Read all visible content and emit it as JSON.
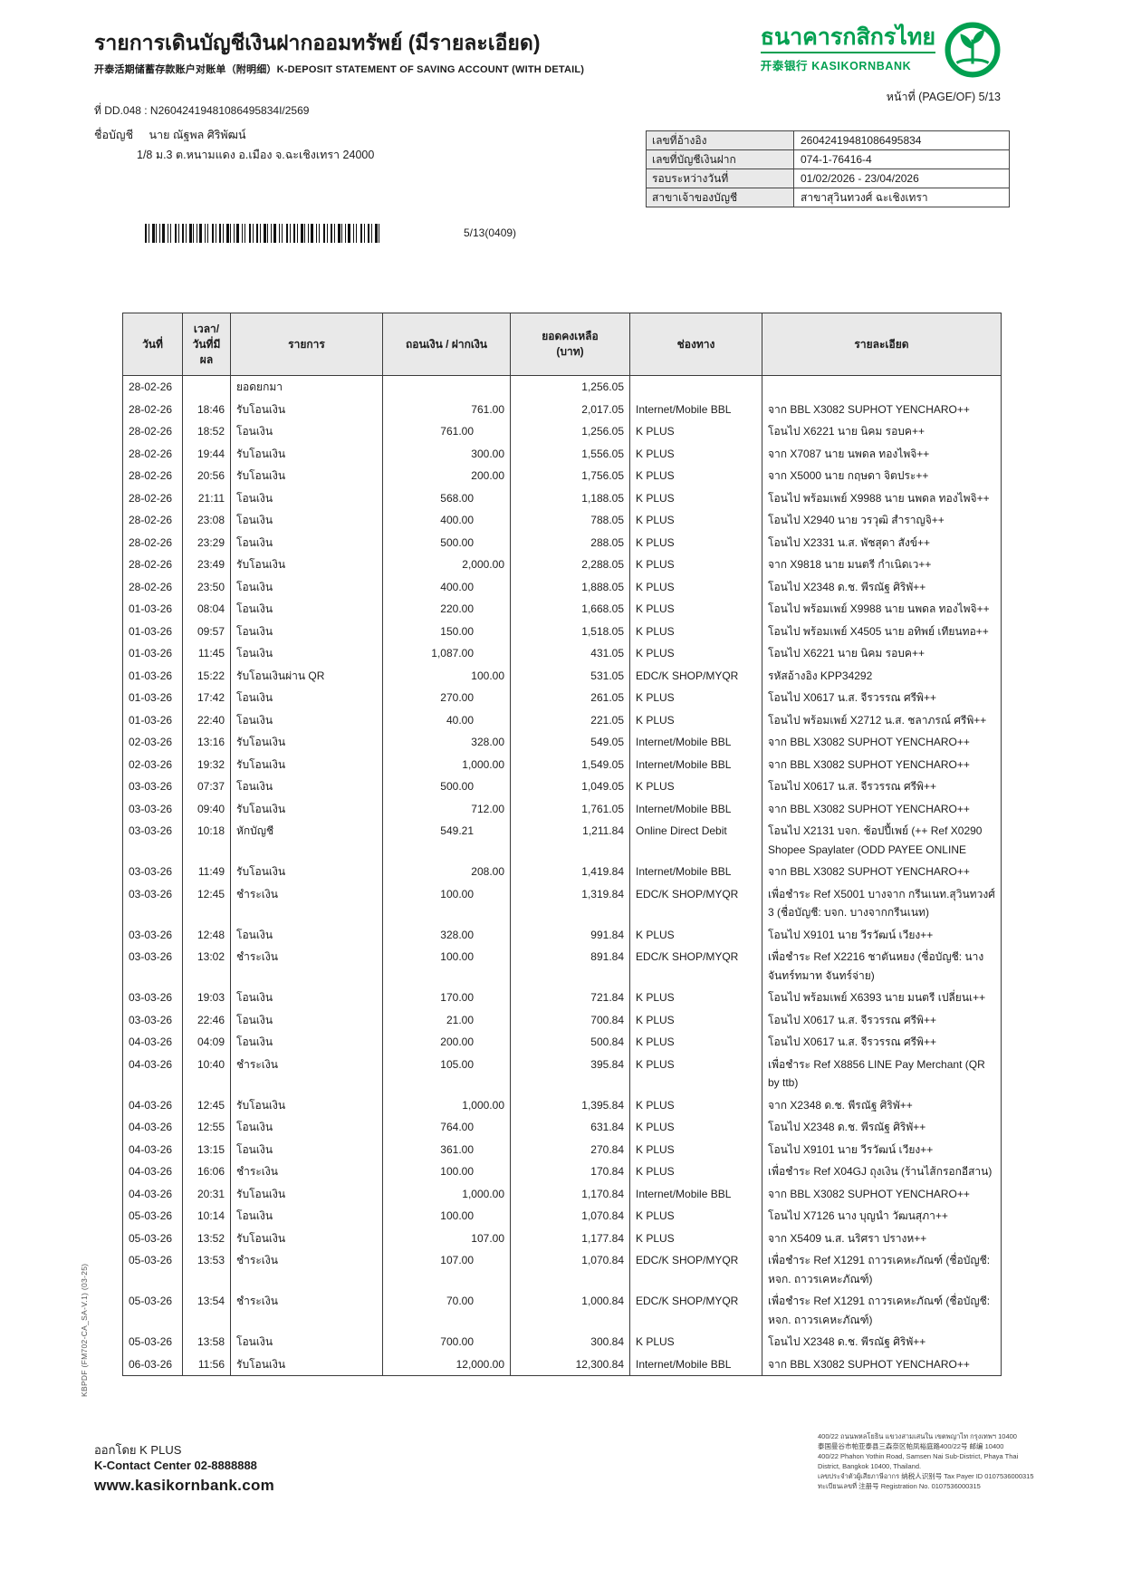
{
  "colors": {
    "brand_green": "#01a050",
    "table_header_bg": "#e9e9e9"
  },
  "header": {
    "title_th": "รายการเดินบัญชีเงินฝากออมทรัพย์ (มีรายละเอียด)",
    "title_cn_en": "开泰活期储蓄存款账户对账单（附明细）K-DEPOSIT STATEMENT OF SAVING ACCOUNT (WITH DETAIL)",
    "bank_name_th": "ธนาคารกสิกรไทย",
    "bank_name_sub": "开泰银行 KASIKORNBANK",
    "page_label": "หน้าที่ (PAGE/OF) 5/13",
    "doc_no": "ที่ DD.048 : N26042419481086495834I/2569",
    "account_name_label": "ชื่อบัญชี",
    "account_name": "นาย ณัฐพล ศิริพัฒน์",
    "account_address": "1/8 ม.3 ต.หนามแดง อ.เมือง จ.ฉะเชิงเทรา 24000"
  },
  "info_box": {
    "rows": [
      {
        "label": "เลขที่อ้างอิง",
        "value": "26042419481086495834"
      },
      {
        "label": "เลขที่บัญชีเงินฝาก",
        "value": "074-1-76416-4"
      },
      {
        "label": "รอบระหว่างวันที่",
        "value": "01/02/2026 - 23/04/2026"
      },
      {
        "label": "สาขาเจ้าของบัญชี",
        "value": "สาขาสุวินทวงศ์ ฉะเชิงเทรา"
      }
    ]
  },
  "barcode": {
    "caption": "5/13(0409)"
  },
  "table": {
    "headers": {
      "date": "วันที่",
      "time_1": "เวลา/",
      "time_2": "วันที่มีผล",
      "description": "รายการ",
      "amount": "ถอนเงิน / ฝากเงิน",
      "balance_1": "ยอดคงเหลือ",
      "balance_2": "(บาท)",
      "channel": "ช่องทาง",
      "detail": "รายละเอียด"
    },
    "rows": [
      {
        "date": "28-02-26",
        "time": "",
        "desc": "ยอดยกมา",
        "withdraw": "",
        "deposit": "",
        "balance": "1,256.05",
        "channel": "",
        "detail": ""
      },
      {
        "date": "28-02-26",
        "time": "18:46",
        "desc": "รับโอนเงิน",
        "withdraw": "",
        "deposit": "761.00",
        "balance": "2,017.05",
        "channel": "Internet/Mobile BBL",
        "detail": "จาก BBL X3082 SUPHOT YENCHARO++"
      },
      {
        "date": "28-02-26",
        "time": "18:52",
        "desc": "โอนเงิน",
        "withdraw": "761.00",
        "deposit": "",
        "balance": "1,256.05",
        "channel": "K PLUS",
        "detail": "โอนไป X6221 นาย นิคม รอบค++"
      },
      {
        "date": "28-02-26",
        "time": "19:44",
        "desc": "รับโอนเงิน",
        "withdraw": "",
        "deposit": "300.00",
        "balance": "1,556.05",
        "channel": "K PLUS",
        "detail": "จาก X7087 นาย นพดล ทองไพจิ++"
      },
      {
        "date": "28-02-26",
        "time": "20:56",
        "desc": "รับโอนเงิน",
        "withdraw": "",
        "deposit": "200.00",
        "balance": "1,756.05",
        "channel": "K PLUS",
        "detail": "จาก X5000 นาย กฤษดา จิตประ++"
      },
      {
        "date": "28-02-26",
        "time": "21:11",
        "desc": "โอนเงิน",
        "withdraw": "568.00",
        "deposit": "",
        "balance": "1,188.05",
        "channel": "K PLUS",
        "detail": "โอนไป พร้อมเพย์ X9988 นาย นพดล ทองไพจิ++"
      },
      {
        "date": "28-02-26",
        "time": "23:08",
        "desc": "โอนเงิน",
        "withdraw": "400.00",
        "deposit": "",
        "balance": "788.05",
        "channel": "K PLUS",
        "detail": "โอนไป X2940 นาย วรวุฒิ สำราญจิ++"
      },
      {
        "date": "28-02-26",
        "time": "23:29",
        "desc": "โอนเงิน",
        "withdraw": "500.00",
        "deposit": "",
        "balance": "288.05",
        "channel": "K PLUS",
        "detail": "โอนไป X2331 น.ส. พัชสุดา สังข์++"
      },
      {
        "date": "28-02-26",
        "time": "23:49",
        "desc": "รับโอนเงิน",
        "withdraw": "",
        "deposit": "2,000.00",
        "balance": "2,288.05",
        "channel": "K PLUS",
        "detail": "จาก X9818 นาย มนตรี กำเนิดเว++"
      },
      {
        "date": "28-02-26",
        "time": "23:50",
        "desc": "โอนเงิน",
        "withdraw": "400.00",
        "deposit": "",
        "balance": "1,888.05",
        "channel": "K PLUS",
        "detail": "โอนไป X2348 ด.ช. พีรณัฐ ศิริพั++"
      },
      {
        "date": "01-03-26",
        "time": "08:04",
        "desc": "โอนเงิน",
        "withdraw": "220.00",
        "deposit": "",
        "balance": "1,668.05",
        "channel": "K PLUS",
        "detail": "โอนไป พร้อมเพย์ X9988 นาย นพดล ทองไพจิ++"
      },
      {
        "date": "01-03-26",
        "time": "09:57",
        "desc": "โอนเงิน",
        "withdraw": "150.00",
        "deposit": "",
        "balance": "1,518.05",
        "channel": "K PLUS",
        "detail": "โอนไป พร้อมเพย์ X4505 นาย อทิพย์ เทียนทอ++"
      },
      {
        "date": "01-03-26",
        "time": "11:45",
        "desc": "โอนเงิน",
        "withdraw": "1,087.00",
        "deposit": "",
        "balance": "431.05",
        "channel": "K PLUS",
        "detail": "โอนไป X6221 นาย นิคม รอบค++"
      },
      {
        "date": "01-03-26",
        "time": "15:22",
        "desc": "รับโอนเงินผ่าน QR",
        "withdraw": "",
        "deposit": "100.00",
        "balance": "531.05",
        "channel": "EDC/K SHOP/MYQR",
        "detail": "รหัสอ้างอิง KPP34292"
      },
      {
        "date": "01-03-26",
        "time": "17:42",
        "desc": "โอนเงิน",
        "withdraw": "270.00",
        "deposit": "",
        "balance": "261.05",
        "channel": "K PLUS",
        "detail": "โอนไป X0617 น.ส. จีรวรรณ ศรีพิ++"
      },
      {
        "date": "01-03-26",
        "time": "22:40",
        "desc": "โอนเงิน",
        "withdraw": "40.00",
        "deposit": "",
        "balance": "221.05",
        "channel": "K PLUS",
        "detail": "โอนไป พร้อมเพย์ X2712 น.ส. ชลาภรณ์ ศรีพิ++"
      },
      {
        "date": "02-03-26",
        "time": "13:16",
        "desc": "รับโอนเงิน",
        "withdraw": "",
        "deposit": "328.00",
        "balance": "549.05",
        "channel": "Internet/Mobile BBL",
        "detail": "จาก BBL X3082 SUPHOT YENCHARO++"
      },
      {
        "date": "02-03-26",
        "time": "19:32",
        "desc": "รับโอนเงิน",
        "withdraw": "",
        "deposit": "1,000.00",
        "balance": "1,549.05",
        "channel": "Internet/Mobile BBL",
        "detail": "จาก BBL X3082 SUPHOT YENCHARO++"
      },
      {
        "date": "03-03-26",
        "time": "07:37",
        "desc": "โอนเงิน",
        "withdraw": "500.00",
        "deposit": "",
        "balance": "1,049.05",
        "channel": "K PLUS",
        "detail": "โอนไป X0617 น.ส. จีรวรรณ ศรีพิ++"
      },
      {
        "date": "03-03-26",
        "time": "09:40",
        "desc": "รับโอนเงิน",
        "withdraw": "",
        "deposit": "712.00",
        "balance": "1,761.05",
        "channel": "Internet/Mobile BBL",
        "detail": "จาก BBL X3082 SUPHOT YENCHARO++"
      },
      {
        "date": "03-03-26",
        "time": "10:18",
        "desc": "หักบัญชี",
        "withdraw": "549.21",
        "deposit": "",
        "balance": "1,211.84",
        "channel": "Online Direct Debit",
        "detail": "โอนไป X2131 บจก. ช้อปปี้เพย์ (++ Ref X0290 Shopee Spaylater (ODD PAYEE ONLINE"
      },
      {
        "date": "03-03-26",
        "time": "11:49",
        "desc": "รับโอนเงิน",
        "withdraw": "",
        "deposit": "208.00",
        "balance": "1,419.84",
        "channel": "Internet/Mobile BBL",
        "detail": "จาก BBL X3082 SUPHOT YENCHARO++"
      },
      {
        "date": "03-03-26",
        "time": "12:45",
        "desc": "ชำระเงิน",
        "withdraw": "100.00",
        "deposit": "",
        "balance": "1,319.84",
        "channel": "EDC/K SHOP/MYQR",
        "detail": "เพื่อชำระ Ref X5001 บางจาก กรีนเนท.สุวินทวงศ์ 3 (ชื่อบัญชี: บจก. บางจากกรีนเนท)"
      },
      {
        "date": "03-03-26",
        "time": "12:48",
        "desc": "โอนเงิน",
        "withdraw": "328.00",
        "deposit": "",
        "balance": "991.84",
        "channel": "K PLUS",
        "detail": "โอนไป X9101 นาย วีรวัฒน์ เวียง++"
      },
      {
        "date": "03-03-26",
        "time": "13:02",
        "desc": "ชำระเงิน",
        "withdraw": "100.00",
        "deposit": "",
        "balance": "891.84",
        "channel": "EDC/K SHOP/MYQR",
        "detail": "เพื่อชำระ Ref X2216 ชาตันหยง (ชื่อบัญชี: นาง จันทร์ทมาท จันทร์จ่าย)"
      },
      {
        "date": "03-03-26",
        "time": "19:03",
        "desc": "โอนเงิน",
        "withdraw": "170.00",
        "deposit": "",
        "balance": "721.84",
        "channel": "K PLUS",
        "detail": "โอนไป พร้อมเพย์ X6393 นาย มนตรี เปลี่ยนเ++"
      },
      {
        "date": "03-03-26",
        "time": "22:46",
        "desc": "โอนเงิน",
        "withdraw": "21.00",
        "deposit": "",
        "balance": "700.84",
        "channel": "K PLUS",
        "detail": "โอนไป X0617 น.ส. จีรวรรณ ศรีพิ++"
      },
      {
        "date": "04-03-26",
        "time": "04:09",
        "desc": "โอนเงิน",
        "withdraw": "200.00",
        "deposit": "",
        "balance": "500.84",
        "channel": "K PLUS",
        "detail": "โอนไป X0617 น.ส. จีรวรรณ ศรีพิ++"
      },
      {
        "date": "04-03-26",
        "time": "10:40",
        "desc": "ชำระเงิน",
        "withdraw": "105.00",
        "deposit": "",
        "balance": "395.84",
        "channel": "K PLUS",
        "detail": "เพื่อชำระ Ref X8856 LINE Pay Merchant (QR by ttb)"
      },
      {
        "date": "04-03-26",
        "time": "12:45",
        "desc": "รับโอนเงิน",
        "withdraw": "",
        "deposit": "1,000.00",
        "balance": "1,395.84",
        "channel": "K PLUS",
        "detail": "จาก X2348 ด.ช. พีรณัฐ ศิริพั++"
      },
      {
        "date": "04-03-26",
        "time": "12:55",
        "desc": "โอนเงิน",
        "withdraw": "764.00",
        "deposit": "",
        "balance": "631.84",
        "channel": "K PLUS",
        "detail": "โอนไป X2348 ด.ช. พีรณัฐ ศิริพั++"
      },
      {
        "date": "04-03-26",
        "time": "13:15",
        "desc": "โอนเงิน",
        "withdraw": "361.00",
        "deposit": "",
        "balance": "270.84",
        "channel": "K PLUS",
        "detail": "โอนไป X9101 นาย วีรวัฒน์ เวียง++"
      },
      {
        "date": "04-03-26",
        "time": "16:06",
        "desc": "ชำระเงิน",
        "withdraw": "100.00",
        "deposit": "",
        "balance": "170.84",
        "channel": "K PLUS",
        "detail": "เพื่อชำระ Ref X04GJ ถุงเงิน (ร้านไส้กรอกอีสาน)"
      },
      {
        "date": "04-03-26",
        "time": "20:31",
        "desc": "รับโอนเงิน",
        "withdraw": "",
        "deposit": "1,000.00",
        "balance": "1,170.84",
        "channel": "Internet/Mobile BBL",
        "detail": "จาก BBL X3082 SUPHOT YENCHARO++"
      },
      {
        "date": "05-03-26",
        "time": "10:14",
        "desc": "โอนเงิน",
        "withdraw": "100.00",
        "deposit": "",
        "balance": "1,070.84",
        "channel": "K PLUS",
        "detail": "โอนไป X7126 นาง บุญนำ วัฒนสุภา++"
      },
      {
        "date": "05-03-26",
        "time": "13:52",
        "desc": "รับโอนเงิน",
        "withdraw": "",
        "deposit": "107.00",
        "balance": "1,177.84",
        "channel": "K PLUS",
        "detail": "จาก X5409 น.ส. นริศรา ปรางห++"
      },
      {
        "date": "05-03-26",
        "time": "13:53",
        "desc": "ชำระเงิน",
        "withdraw": "107.00",
        "deposit": "",
        "balance": "1,070.84",
        "channel": "EDC/K SHOP/MYQR",
        "detail": "เพื่อชำระ Ref X1291 ถาวรเคหะภัณฑ์ (ชื่อบัญชี: หจก. ถาวรเคหะภัณฑ์)"
      },
      {
        "date": "05-03-26",
        "time": "13:54",
        "desc": "ชำระเงิน",
        "withdraw": "70.00",
        "deposit": "",
        "balance": "1,000.84",
        "channel": "EDC/K SHOP/MYQR",
        "detail": "เพื่อชำระ Ref X1291 ถาวรเคหะภัณฑ์ (ชื่อบัญชี: หจก. ถาวรเคหะภัณฑ์)"
      },
      {
        "date": "05-03-26",
        "time": "13:58",
        "desc": "โอนเงิน",
        "withdraw": "700.00",
        "deposit": "",
        "balance": "300.84",
        "channel": "K PLUS",
        "detail": "โอนไป X2348 ด.ช. พีรณัฐ ศิริพั++"
      },
      {
        "date": "06-03-26",
        "time": "11:56",
        "desc": "รับโอนเงิน",
        "withdraw": "",
        "deposit": "12,000.00",
        "balance": "12,300.84",
        "channel": "Internet/Mobile BBL",
        "detail": "จาก BBL X3082 SUPHOT YENCHARO++"
      }
    ]
  },
  "footer": {
    "issued_by": "ออกโดย K PLUS",
    "contact": "K-Contact Center 02-8888888",
    "website": "www.kasikornbank.com",
    "fine_print": [
      "400/22 ถนนพหลโยธิน แขวงสามเสนใน เขตพญาไท กรุงเทพฯ 10400",
      "泰国曼谷市帕亚泰县三森奈区帕凤裕庭路400/22号 邮编 10400",
      "400/22 Phahon Yothin Road, Samsen Nai Sub-District, Phaya Thai District, Bangkok 10400, Thailand.",
      "เลขประจำตัวผู้เสียภาษีอากร 纳税人识别号 Tax Payer ID 0107536000315",
      "ทะเบียนเลขที่ 注册号 Registration No. 0107536000315"
    ]
  },
  "side_note": "KBPDF (FM702-CA_SA-V.1) (03-25)"
}
